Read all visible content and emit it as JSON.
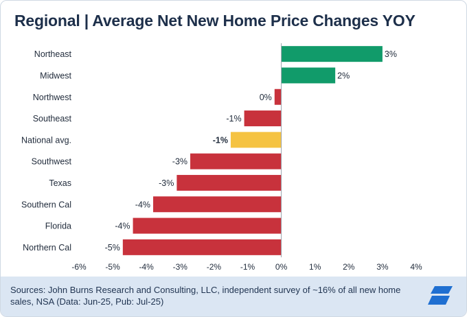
{
  "title": "Regional | Average Net New Home Price Changes YOY",
  "source": "Sources: John Burns Research and Consulting, LLC, independent survey of ~16% of all new home sales, NSA (Data: Jun-25, Pub: Jul-25)",
  "colors": {
    "positive": "#119b6a",
    "negative": "#c8323c",
    "highlight": "#f5c342",
    "title": "#1d2f4a",
    "footer_bg": "#dbe6f3",
    "logo": "#1f6fd1"
  },
  "logo_icon": "company-logo-icon",
  "chart_data": {
    "type": "bar",
    "orientation": "horizontal",
    "title": "Regional | Average Net New Home Price Changes YOY",
    "categories": [
      "Northeast",
      "Midwest",
      "Northwest",
      "Southeast",
      "National avg.",
      "Southwest",
      "Texas",
      "Southern Cal",
      "Florida",
      "Northern Cal"
    ],
    "values": [
      3.0,
      1.6,
      -0.2,
      -1.1,
      -1.5,
      -2.7,
      -3.1,
      -3.8,
      -4.4,
      -4.7
    ],
    "data_labels": [
      "3%",
      "2%",
      "0%",
      "-1%",
      "-1%",
      "-3%",
      "-3%",
      "-4%",
      "-4%",
      "-5%"
    ],
    "highlight": "National avg.",
    "xlim": [
      -6,
      4
    ],
    "xticks": [
      "-6%",
      "-5%",
      "-4%",
      "-3%",
      "-2%",
      "-1%",
      "0%",
      "1%",
      "2%",
      "3%",
      "4%"
    ],
    "grid": false,
    "legend": "none"
  }
}
